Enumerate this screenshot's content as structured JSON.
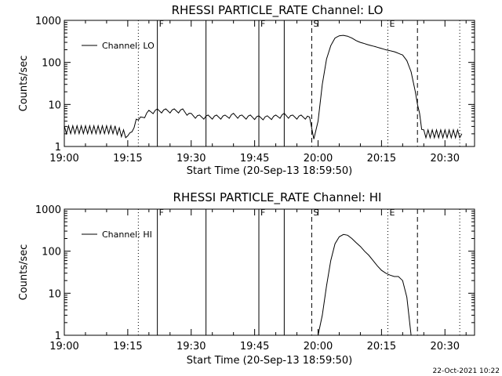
{
  "chart_data": [
    {
      "type": "line",
      "title": "RHESSI PARTICLE_RATE Channel: LO",
      "xlabel": "Start Time (20-Sep-13 18:59:50)",
      "ylabel": "Counts/sec",
      "y_scale": "log",
      "ylim": [
        1,
        1000
      ],
      "xlim": [
        "19:00",
        "20:37"
      ],
      "x_tick_labels": [
        "19:00",
        "19:15",
        "19:30",
        "19:45",
        "20:00",
        "20:15",
        "20:30"
      ],
      "y_tick_labels": [
        "1",
        "10",
        "100",
        "1000"
      ],
      "legend": {
        "position": "top-left",
        "entries": [
          "Channel: LO"
        ]
      },
      "series": [
        {
          "name": "Channel: LO",
          "x": [
            "19:00:00",
            "19:02:00",
            "19:04:00",
            "19:06:00",
            "19:08:00",
            "19:10:00",
            "19:12:00",
            "19:14:00",
            "19:16:00",
            "19:17:00",
            "19:18:00",
            "19:20:00",
            "19:22:00",
            "19:24:00",
            "19:26:00",
            "19:28:00",
            "19:30:00",
            "19:32:00",
            "19:34:00",
            "19:36:00",
            "19:38:00",
            "19:40:00",
            "19:42:00",
            "19:44:00",
            "19:46:00",
            "19:48:00",
            "19:50:00",
            "19:52:00",
            "19:54:00",
            "19:56:00",
            "19:58:00",
            "19:59:00",
            "20:00:00",
            "20:01:00",
            "20:02:00",
            "20:03:00",
            "20:04:00",
            "20:05:00",
            "20:06:00",
            "20:07:00",
            "20:08:00",
            "20:09:00",
            "20:10:00",
            "20:12:00",
            "20:14:00",
            "20:16:00",
            "20:18:00",
            "20:20:00",
            "20:21:00",
            "20:22:00",
            "20:23:00",
            "20:24:00",
            "20:25:00",
            "20:26:00",
            "20:28:00",
            "20:30:00",
            "20:32:00",
            "20:34:00"
          ],
          "y": [
            2.5,
            2.5,
            2.5,
            2.5,
            2.5,
            2.5,
            2.5,
            2.0,
            2.0,
            4.0,
            4.5,
            6.5,
            7.0,
            7.0,
            7.0,
            7.0,
            5.5,
            5.0,
            5.0,
            5.0,
            5.0,
            5.5,
            5.0,
            5.0,
            4.8,
            4.8,
            5.0,
            5.5,
            5.0,
            5.0,
            5.0,
            1.5,
            4.0,
            30,
            120,
            250,
            380,
            430,
            440,
            420,
            380,
            330,
            300,
            260,
            230,
            200,
            180,
            150,
            110,
            60,
            20,
            5,
            2,
            2,
            2,
            2,
            2,
            2
          ]
        }
      ],
      "flags": [
        "F",
        "F",
        "S",
        "E"
      ]
    },
    {
      "type": "line",
      "title": "RHESSI PARTICLE_RATE Channel: HI",
      "xlabel": "Start Time (20-Sep-13 18:59:50)",
      "ylabel": "Counts/sec",
      "y_scale": "log",
      "ylim": [
        1,
        1000
      ],
      "xlim": [
        "19:00",
        "20:37"
      ],
      "x_tick_labels": [
        "19:00",
        "19:15",
        "19:30",
        "19:45",
        "20:00",
        "20:15",
        "20:30"
      ],
      "y_tick_labels": [
        "1",
        "10",
        "100",
        "1000"
      ],
      "legend": {
        "position": "top-left",
        "entries": [
          "Channel: HI"
        ]
      },
      "series": [
        {
          "name": "Channel: HI",
          "x": [
            "20:00:00",
            "20:01:00",
            "20:02:00",
            "20:03:00",
            "20:04:00",
            "20:05:00",
            "20:06:00",
            "20:07:00",
            "20:08:00",
            "20:09:00",
            "20:10:00",
            "20:11:00",
            "20:12:00",
            "20:13:00",
            "20:14:00",
            "20:15:00",
            "20:16:00",
            "20:17:00",
            "20:18:00",
            "20:19:00",
            "20:20:00",
            "20:21:00",
            "20:22:00"
          ],
          "y": [
            1.0,
            3,
            15,
            60,
            150,
            220,
            250,
            240,
            200,
            160,
            130,
            100,
            80,
            60,
            45,
            35,
            30,
            27,
            25,
            25,
            20,
            8,
            1.0
          ]
        }
      ],
      "flags": [
        "F",
        "F",
        "S",
        "E"
      ]
    }
  ],
  "footer": {
    "timestamp": "22-Oct-2021 10:22"
  }
}
